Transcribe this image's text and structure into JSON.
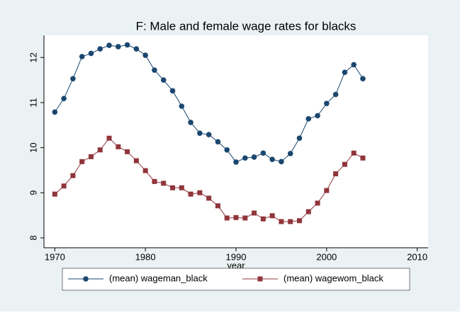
{
  "chart_data": {
    "type": "line",
    "title": "F: Male and female wage rates for blacks",
    "x_label": "year",
    "x": [
      1970,
      1971,
      1972,
      1973,
      1974,
      1975,
      1976,
      1977,
      1978,
      1979,
      1980,
      1981,
      1982,
      1983,
      1984,
      1985,
      1986,
      1987,
      1988,
      1989,
      1990,
      1991,
      1992,
      1993,
      1994,
      1995,
      1996,
      1997,
      1998,
      1999,
      2000,
      2001,
      2002,
      2003,
      2004
    ],
    "series": [
      {
        "name": "(mean) wageman_black",
        "color": "#1a476f",
        "marker": "circle",
        "values": [
          10.79,
          11.09,
          11.53,
          12.02,
          12.09,
          12.19,
          12.27,
          12.24,
          12.28,
          12.19,
          12.05,
          11.72,
          11.5,
          11.26,
          10.92,
          10.56,
          10.32,
          10.29,
          10.13,
          9.95,
          9.68,
          9.77,
          9.79,
          9.88,
          9.74,
          9.69,
          9.87,
          10.21,
          10.64,
          10.71,
          10.98,
          11.18,
          11.67,
          11.84,
          11.53
        ]
      },
      {
        "name": "(mean) wagewom_black",
        "color": "#90353b",
        "marker": "square",
        "values": [
          8.97,
          9.15,
          9.38,
          9.69,
          9.8,
          9.95,
          10.21,
          10.02,
          9.91,
          9.71,
          9.49,
          9.25,
          9.21,
          9.11,
          9.11,
          8.97,
          9.0,
          8.88,
          8.71,
          8.44,
          8.45,
          8.44,
          8.55,
          8.42,
          8.49,
          8.36,
          8.36,
          8.38,
          8.58,
          8.77,
          9.05,
          9.42,
          9.63,
          9.88,
          9.77
        ]
      }
    ],
    "xlim": [
      1968.8,
      2011.2
    ],
    "xticks": [
      1970,
      1980,
      1990,
      2000,
      2010
    ],
    "ylim": [
      7.78,
      12.49
    ],
    "yticks": [
      8,
      9,
      10,
      11,
      12
    ],
    "grid": false,
    "legend": "bottom"
  }
}
